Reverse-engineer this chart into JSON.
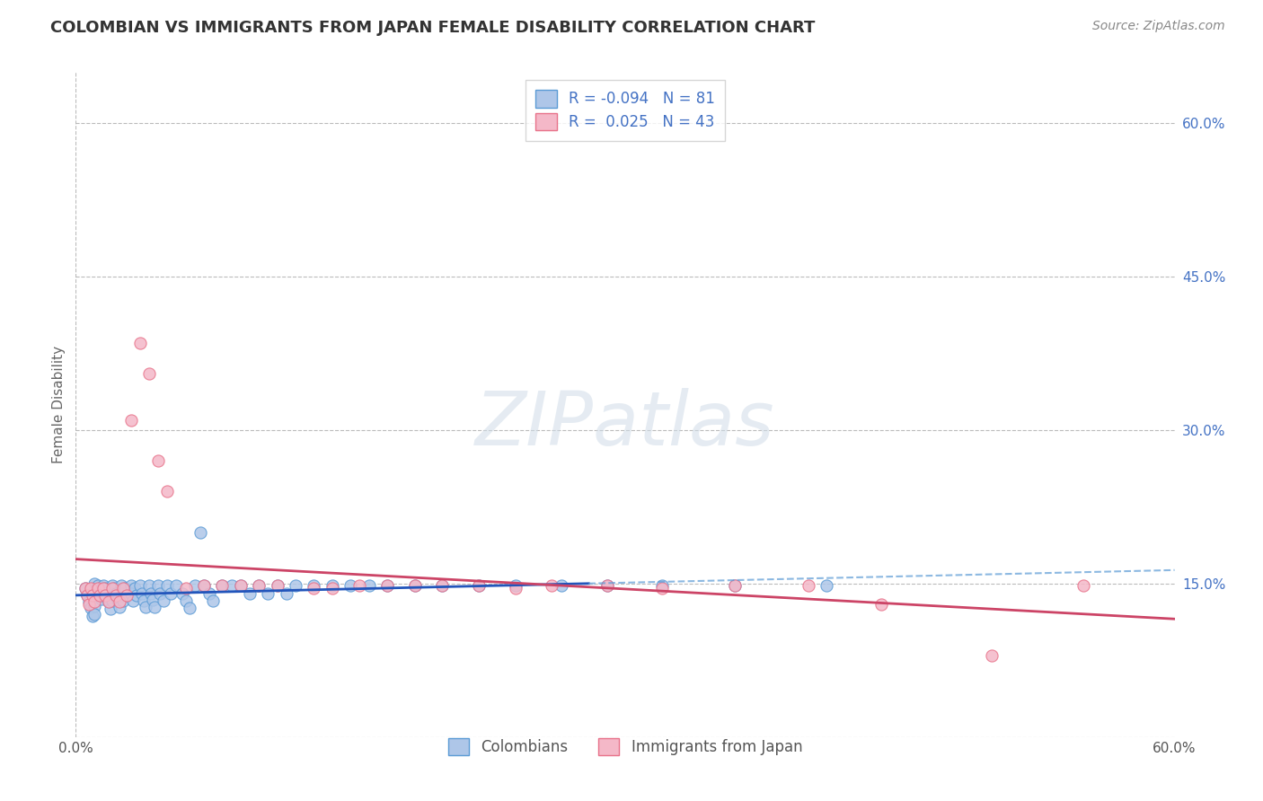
{
  "title": "COLOMBIAN VS IMMIGRANTS FROM JAPAN FEMALE DISABILITY CORRELATION CHART",
  "source": "Source: ZipAtlas.com",
  "ylabel": "Female Disability",
  "x_min": 0.0,
  "x_max": 0.6,
  "y_min": 0.0,
  "y_max": 0.65,
  "y_ticks": [
    0.0,
    0.15,
    0.3,
    0.45,
    0.6
  ],
  "y_tick_labels": [
    "",
    "15.0%",
    "30.0%",
    "45.0%",
    "60.0%"
  ],
  "series1_name": "Colombians",
  "series1_color": "#aec6e8",
  "series1_edge_color": "#5b9bd5",
  "series1_R": -0.094,
  "series1_N": 81,
  "series2_name": "Immigrants from Japan",
  "series2_color": "#f4b8c8",
  "series2_edge_color": "#e8728a",
  "series2_R": 0.025,
  "series2_N": 43,
  "trend1_color": "#2255bb",
  "trend2_color": "#cc4466",
  "trend1_solid_end": 0.28,
  "watermark_text": "ZIPatlas",
  "background_color": "#ffffff",
  "grid_color": "#bbbbbb",
  "legend_text_color": "#4472c4",
  "colombians_x": [
    0.005,
    0.006,
    0.007,
    0.008,
    0.009,
    0.01,
    0.01,
    0.01,
    0.01,
    0.01,
    0.012,
    0.013,
    0.014,
    0.015,
    0.015,
    0.016,
    0.017,
    0.018,
    0.019,
    0.02,
    0.02,
    0.02,
    0.021,
    0.022,
    0.023,
    0.024,
    0.025,
    0.025,
    0.026,
    0.027,
    0.028,
    0.03,
    0.03,
    0.031,
    0.032,
    0.033,
    0.035,
    0.036,
    0.037,
    0.038,
    0.04,
    0.041,
    0.042,
    0.043,
    0.045,
    0.046,
    0.048,
    0.05,
    0.052,
    0.055,
    0.058,
    0.06,
    0.062,
    0.065,
    0.068,
    0.07,
    0.073,
    0.075,
    0.08,
    0.085,
    0.09,
    0.095,
    0.1,
    0.105,
    0.11,
    0.115,
    0.12,
    0.13,
    0.14,
    0.15,
    0.16,
    0.17,
    0.185,
    0.2,
    0.22,
    0.24,
    0.265,
    0.29,
    0.32,
    0.36,
    0.41
  ],
  "colombians_y": [
    0.145,
    0.138,
    0.132,
    0.126,
    0.118,
    0.15,
    0.143,
    0.136,
    0.128,
    0.12,
    0.148,
    0.142,
    0.135,
    0.148,
    0.138,
    0.145,
    0.138,
    0.132,
    0.125,
    0.148,
    0.14,
    0.133,
    0.145,
    0.14,
    0.134,
    0.127,
    0.148,
    0.14,
    0.133,
    0.145,
    0.138,
    0.148,
    0.14,
    0.133,
    0.145,
    0.138,
    0.148,
    0.14,
    0.133,
    0.127,
    0.148,
    0.14,
    0.134,
    0.127,
    0.148,
    0.14,
    0.133,
    0.148,
    0.14,
    0.148,
    0.14,
    0.133,
    0.126,
    0.148,
    0.2,
    0.148,
    0.14,
    0.133,
    0.148,
    0.148,
    0.148,
    0.14,
    0.148,
    0.14,
    0.148,
    0.14,
    0.148,
    0.148,
    0.148,
    0.148,
    0.148,
    0.148,
    0.148,
    0.148,
    0.148,
    0.148,
    0.148,
    0.148,
    0.148,
    0.148,
    0.148
  ],
  "japan_x": [
    0.005,
    0.006,
    0.007,
    0.008,
    0.009,
    0.01,
    0.012,
    0.013,
    0.015,
    0.016,
    0.018,
    0.02,
    0.022,
    0.024,
    0.026,
    0.028,
    0.03,
    0.035,
    0.04,
    0.045,
    0.05,
    0.06,
    0.07,
    0.08,
    0.09,
    0.1,
    0.11,
    0.13,
    0.14,
    0.155,
    0.17,
    0.185,
    0.2,
    0.22,
    0.24,
    0.26,
    0.29,
    0.32,
    0.36,
    0.4,
    0.44,
    0.5,
    0.55
  ],
  "japan_y": [
    0.145,
    0.138,
    0.13,
    0.145,
    0.138,
    0.132,
    0.145,
    0.138,
    0.145,
    0.138,
    0.132,
    0.145,
    0.138,
    0.132,
    0.145,
    0.138,
    0.31,
    0.385,
    0.355,
    0.27,
    0.24,
    0.145,
    0.148,
    0.148,
    0.148,
    0.148,
    0.148,
    0.145,
    0.145,
    0.148,
    0.148,
    0.148,
    0.148,
    0.148,
    0.145,
    0.148,
    0.148,
    0.145,
    0.148,
    0.148,
    0.13,
    0.08,
    0.148
  ]
}
